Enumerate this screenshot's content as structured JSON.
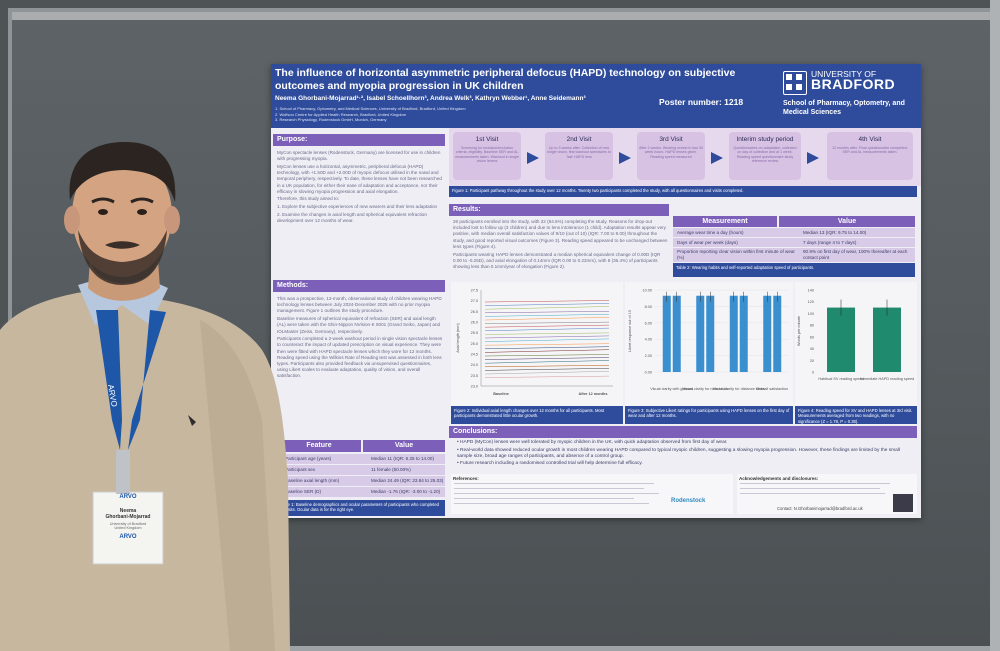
{
  "badge": {
    "event_small": "ARVO",
    "name_line1": "Neema",
    "name_line2": "Ghorbani-Mojarrad",
    "org_line1": "University of Bradford",
    "org_line2": "United Kingdom",
    "lanyard_brand": "ARVO"
  },
  "poster": {
    "title": "The influence of horizontal asymmetric peripheral defocus (HAPD) technology on subjective outcomes and myopia progression in UK children",
    "authors": "Neema Ghorbani-Mojarrad¹·², Isabel Schoellhorn³, Andrea Welk³, Kathryn Webber¹, Anne Seidemann³",
    "affiliations": [
      "1. School of Pharmacy, Optometry, and Medical Sciences, University of Bradford, Bradford, United Kingdom",
      "2. Wolfson Centre for Applied Health Research, Bradford, United Kingdom",
      "3. Research Physiology, Rodenstock GmbH, Munich, Germany"
    ],
    "poster_number": "Poster number: 1218",
    "university": {
      "line1": "UNIVERSITY OF",
      "line2": "BRADFORD",
      "school": "School of Pharmacy, Optometry, and Medical Sciences"
    },
    "purpose": {
      "heading": "Purpose:",
      "p1": "MyCon spectacle lenses (Rodenstock, Germany) are licensed for use in children with progressing myopia.",
      "p2": "MyCon lenses use a horizontal, asymmetric, peripheral defocus (HAPD) technology, with +1.50D and +2.00D of myopic defocus utilised in the nasal and temporal periphery, respectively. To date, these lenses have not been researched in a UK population, for either their ease of adaptation and acceptance, nor their efficacy in slowing myopia progression and axial elongation.",
      "p3": "Therefore, this study aimed to:",
      "aims": [
        "1. Explore the subjective experiences of new wearers and their lens adaptation",
        "2. Examine the changes in axial length and spherical equivalent refraction development over 12 months of wear."
      ]
    },
    "methods": {
      "heading": "Methods:",
      "p1": "This was a prospective, 12-month, observational study of children wearing HAPD technology lenses between July 2024-December 2025 with no prior myopia management. Figure 1 outlines the study procedure.",
      "p2": "Baseline measures of spherical equivalent of refraction (SER) and axial length (AL) were taken with the Shin-Nippon NVision-K 5001 (Grand Seiko, Japan) and IOLMaster (Zeiss, Germany), respectively.",
      "p3": "Participants completed a 2-week washout period in single vision spectacle lenses to counteract the impact of updated prescription on visual experience. They were then were fitted with HAPD spectacle lenses which they wore for 12 months. Reading speed using the Wilkins Rate of Reading test was assessed in both lens types. Participants also provided feedback via unsupervised questionnaires, using Likert scales to evaluate adaptation, quality of vision, and overall satisfaction."
    },
    "visits": [
      {
        "title": "1st Visit",
        "desc": "Screening for inclusion/exclusion criteria, eligibility. Baseline SER and AL measurements taken. Washout in single vision lenses"
      },
      {
        "title": "2nd Visit",
        "desc": "Up to 3 weeks after. Collection of new single vision, first washout spectacles to 'last' HAPD lens"
      },
      {
        "title": "3rd Visit",
        "desc": "After 2 weeks. Wearing review in two 30 week hours. HAPD lenses given. Reading speed measured"
      },
      {
        "title": "Interim study period",
        "desc": "Questionnaires on adaptation, collected on day of collection and at 1 week. Reading speed questionnaire study reference review"
      },
      {
        "title": "4th Visit",
        "desc": "12 months after. Final questionnaire completed. SER and AL measurements taken."
      }
    ],
    "figure1_caption": "Figure 1: Participant pathway throughout the study over 12 months. Twenty two participants completed the study, with all questionnaires and visits completed.",
    "results": {
      "heading": "Results:",
      "p1": "26 participants enrolled into the study, with 22 (84.6%) completing the study. Reasons for drop-out included lost to follow up (3 children) and due to lens intolerance (1 child). Adaptation results appear very positive, with median overall satisfaction values of 9/10 (out of 10) (IQR: 7.00 to 9.00) throughout the study, and good reported visual outcomes (Figure 3). Reading speed appeared to be unchanged between lens types (Figure 4).",
      "p2": "Participants wearing HAPD lenses demonstrated a median spherical equivalent change of 0.00D (IQR 0.00 to -0.25D), and axial elongation of 0.14mm (IQR 0.00 to 0.22mm), with 8 (36.4%) of participants showing less than 0.1mm/year of elongation (Figure 2)."
    },
    "table2": {
      "headers": [
        "Measurement",
        "Value"
      ],
      "rows": [
        [
          "Average wear time a day (hours)",
          "Median 13 (IQR: 9.75 to 14.00)"
        ],
        [
          "Days of wear per week (days)",
          "7 days (range 4 to 7 days)"
        ],
        [
          "Proportion reporting clear vision within first minute of wear (%)",
          "90.9% on first day of wear, 100% thereafter at each contact point"
        ]
      ],
      "caption": "Table 2: Wearing habits and self-reported adaptation speed of participants."
    },
    "table1": {
      "headers": [
        "Feature",
        "Value"
      ],
      "rows": [
        [
          "Participant age (years)",
          "Median 11 (IQR: 6.25 to 14.00)"
        ],
        [
          "Participant sex",
          "11 female (50.00%)"
        ],
        [
          "Baseline axial length (mm)",
          "Median 24.49 (IQR: 23.84 to 25.03)"
        ],
        [
          "Baseline SER (D)",
          "Median -1.76 (IQR: -3.00 to -1.20)"
        ]
      ],
      "caption": "Table 1: Baseline demographics and ocular parameters of participants who completed all visits. Ocular data is for the right eye."
    },
    "figure2": {
      "ylabel": "Axial length (mm)",
      "x_categories": [
        "Baseline",
        "After 12 months"
      ],
      "y_ticks": [
        "27.5",
        "27.0",
        "26.5",
        "26.0",
        "25.5",
        "25.0",
        "24.5",
        "24.0",
        "23.5",
        "23.0"
      ],
      "caption": "Figure 2: Individual axial length changes over 12 months for all participants. Most participants demonstrated little ocular growth."
    },
    "figure3": {
      "ylabel": "Likert response out of 10",
      "y_ticks": [
        "10.00",
        "8.00",
        "6.00",
        "4.00",
        "2.00",
        "0.00"
      ],
      "categories": [
        "Visual clarity with glasses",
        "Visual clarity for near tasks",
        "Visual clarity for distance tasks",
        "Overall satisfaction"
      ],
      "caption": "Figure 3: Subjective Likert ratings for participants using HAPD lenses on the first day of wear and after 12 months."
    },
    "figure4": {
      "ylabel": "Words per minute",
      "y_ticks": [
        "140",
        "120",
        "100",
        "80",
        "60",
        "40",
        "20",
        "0"
      ],
      "categories": [
        "Habitual SV reading speed",
        "Immediate HAPD reading speed"
      ],
      "caption": "Figure 4: Reading speed for SV and HAPD lenses at 3rd visit. Measurements averaged from two readings, with no significance (Z = 1.78, P = 0.38)."
    },
    "conclusions": {
      "heading": "Conclusions:",
      "bullets": [
        "HAPD (MyCon) lenses were well tolerated by myopic children in the UK, with quick adaptation observed from first day of wear.",
        "Real-world data showed reduced ocular growth in most children wearing HAPD compared to typical myopic children, suggesting a slowing myopia progression. However, these findings are limited by the small sample size, broad age ranges of participants, and absence of a control group.",
        "Future research including a randomised controlled trial will help determine full efficacy."
      ]
    },
    "references_heading": "References:",
    "ack_heading": "Acknowledgements and disclosures:",
    "contact": "Contact: N.Ghorbanimojarrad@bradford.ac.uk",
    "sponsor": "Rodenstock"
  },
  "colors": {
    "poster_blue": "#2f4c9c",
    "poster_purple": "#7b5fb8",
    "bar_teal": "#3a8fcf",
    "bar_green": "#1f8a6e",
    "lanyard": "#1e56a8"
  }
}
